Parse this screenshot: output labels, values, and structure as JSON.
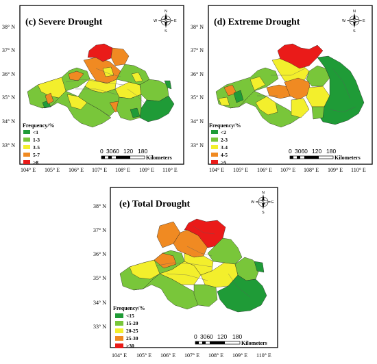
{
  "panels": [
    {
      "id": "c",
      "title": "(c) Severe Drought",
      "legend": {
        "title": "Frequency/%",
        "classes": [
          {
            "label": "<1",
            "color": "#1f9b37"
          },
          {
            "label": "1-3",
            "color": "#79c63a"
          },
          {
            "label": "3-5",
            "color": "#f3ef2c"
          },
          {
            "label": "5-7",
            "color": "#f08a22"
          },
          {
            "label": ">8",
            "color": "#ea1b19"
          }
        ]
      },
      "scale": {
        "ticks": [
          "0",
          "3060",
          "120",
          "180"
        ],
        "unit": "Kilometers"
      },
      "lat_ticks": [
        "38° N",
        "37° N",
        "36° N",
        "35° N",
        "34° N",
        "33° N"
      ],
      "lon_ticks": [
        "104° E",
        "105° E",
        "106° E",
        "107° E",
        "108° E",
        "109° E",
        "110° E"
      ],
      "compass": {
        "n": "N",
        "s": "S",
        "e": "E",
        "w": "W"
      }
    },
    {
      "id": "d",
      "title": "(d) Extreme Drought",
      "legend": {
        "title": "Frequency/%",
        "classes": [
          {
            "label": "<2",
            "color": "#1f9b37"
          },
          {
            "label": "2-3",
            "color": "#79c63a"
          },
          {
            "label": "3-4",
            "color": "#f3ef2c"
          },
          {
            "label": "4-5",
            "color": "#f08a22"
          },
          {
            "label": ">5",
            "color": "#ea1b19"
          }
        ]
      },
      "scale": {
        "ticks": [
          "0",
          "3060",
          "120",
          "180"
        ],
        "unit": "Kilometers"
      },
      "lat_ticks": [
        "38° N",
        "37° N",
        "36° N",
        "35° N",
        "34° N",
        "33° N"
      ],
      "lon_ticks": [
        "104° E",
        "105° E",
        "106° E",
        "107° E",
        "108° E",
        "109° E",
        "110° E"
      ],
      "compass": {
        "n": "N",
        "s": "S",
        "e": "E",
        "w": "W"
      }
    },
    {
      "id": "e",
      "title": "(e) Total Drought",
      "legend": {
        "title": "Frequency/%",
        "classes": [
          {
            "label": "<15",
            "color": "#1f9b37"
          },
          {
            "label": "15-20",
            "color": "#79c63a"
          },
          {
            "label": "20-25",
            "color": "#f3ef2c"
          },
          {
            "label": "25-30",
            "color": "#f08a22"
          },
          {
            "label": ">30",
            "color": "#ea1b19"
          }
        ]
      },
      "scale": {
        "ticks": [
          "0",
          "3060",
          "120",
          "180"
        ],
        "unit": "Kilometers"
      },
      "lat_ticks": [
        "38° N",
        "37° N",
        "36° N",
        "35° N",
        "34° N",
        "33° N"
      ],
      "lon_ticks": [
        "104° E",
        "105° E",
        "106° E",
        "107° E",
        "108° E",
        "109° E",
        "110° E"
      ],
      "compass": {
        "n": "N",
        "s": "S",
        "e": "E",
        "w": "W"
      }
    }
  ]
}
